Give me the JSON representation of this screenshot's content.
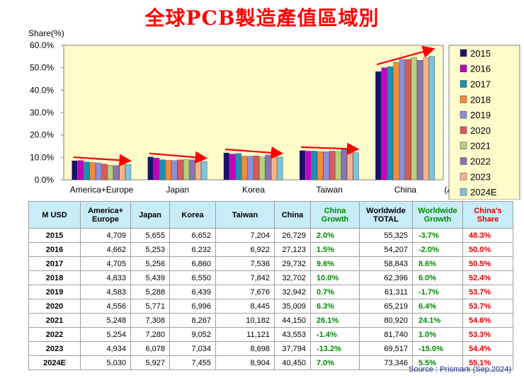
{
  "title": "全球PCB製造產值區域別",
  "chart_data": {
    "type": "bar",
    "y_axis_title": "Share(%)",
    "x_axis_title": "(Area)",
    "ylim": [
      0,
      60
    ],
    "yticks": [
      "0.0%",
      "10.0%",
      "20.0%",
      "30.0%",
      "40.0%",
      "50.0%",
      "60.0%"
    ],
    "categories": [
      "America+Europe",
      "Japan",
      "Korea",
      "Taiwan",
      "China"
    ],
    "legend_position": "right",
    "grid": false,
    "series": [
      {
        "name": "2015",
        "color": "#1c0f6e",
        "values": [
          8.5,
          10.2,
          12.0,
          13.0,
          48.3
        ]
      },
      {
        "name": "2016",
        "color": "#c000c0",
        "values": [
          8.6,
          9.7,
          11.5,
          12.8,
          50.0
        ]
      },
      {
        "name": "2017",
        "color": "#1e8fb0",
        "values": [
          8.0,
          8.9,
          11.7,
          12.8,
          50.5
        ]
      },
      {
        "name": "2018",
        "color": "#f28c38",
        "values": [
          7.7,
          8.7,
          10.5,
          12.6,
          52.4
        ]
      },
      {
        "name": "2019",
        "color": "#8f8fd8",
        "values": [
          7.5,
          8.6,
          10.5,
          12.5,
          53.7
        ]
      },
      {
        "name": "2020",
        "color": "#d85a5a",
        "values": [
          7.0,
          8.9,
          10.7,
          12.8,
          53.7
        ]
      },
      {
        "name": "2021",
        "color": "#b5d17c",
        "values": [
          6.5,
          9.0,
          10.2,
          12.6,
          54.6
        ]
      },
      {
        "name": "2022",
        "color": "#8a75b0",
        "values": [
          6.4,
          8.9,
          11.1,
          13.6,
          53.3
        ]
      },
      {
        "name": "2023",
        "color": "#f6b48b",
        "values": [
          7.1,
          8.7,
          10.1,
          12.5,
          54.4
        ]
      },
      {
        "name": "2024E",
        "color": "#7ec4dc",
        "values": [
          6.9,
          8.1,
          10.2,
          12.1,
          55.1
        ]
      }
    ]
  },
  "table": {
    "headers": [
      "M USD",
      "America+ Europe",
      "Japan",
      "Korea",
      "Taiwan",
      "China",
      "China Growth",
      "Worldwide TOTAL",
      "Worldwide Growth",
      "China's Share"
    ],
    "rows": [
      [
        "2015",
        "4,709",
        "5,655",
        "6,652",
        "7,204",
        "26,729",
        "2.0%",
        "55,325",
        "-3.7%",
        "48.3%"
      ],
      [
        "2016",
        "4,662",
        "5,253",
        "6,232",
        "6,922",
        "27,123",
        "1.5%",
        "54,207",
        "-2.0%",
        "50.0%"
      ],
      [
        "2017",
        "4,705",
        "5,256",
        "6,860",
        "7,536",
        "29,732",
        "9.6%",
        "58,843",
        "8.6%",
        "50.5%"
      ],
      [
        "2018",
        "4,833",
        "5,439",
        "6,550",
        "7,842",
        "32,702",
        "10.0%",
        "62,396",
        "6.0%",
        "52.4%"
      ],
      [
        "2019",
        "4,583",
        "5,288",
        "6,439",
        "7,676",
        "32,942",
        "0.7%",
        "61,311",
        "-1.7%",
        "53.7%"
      ],
      [
        "2020",
        "4,556",
        "5,771",
        "6,996",
        "8,445",
        "35,009",
        "6.3%",
        "65,219",
        "6.4%",
        "53.7%"
      ],
      [
        "2021",
        "5,248",
        "7,308",
        "8,267",
        "10,182",
        "44,150",
        "26.1%",
        "80,920",
        "24.1%",
        "54.6%"
      ],
      [
        "2022",
        "5,254",
        "7,280",
        "9,052",
        "11,121",
        "43,553",
        "-1.4%",
        "81,740",
        "1.0%",
        "53.3%"
      ],
      [
        "2023",
        "4,934",
        "6,078",
        "7,034",
        "8,698",
        "37,794",
        "-13.2%",
        "69,517",
        "-15.0%",
        "54.4%"
      ],
      [
        "2024E",
        "5,030",
        "5,927",
        "7,455",
        "8,904",
        "40,450",
        "7.0%",
        "73,346",
        "5.5%",
        "55.1%"
      ]
    ]
  },
  "source": "Source : Prismark (Sep.2024)",
  "colors": {
    "title": "#ff0000",
    "plot_bg": "#fffccc",
    "header_bg": "#c8ecf8",
    "arrow": "#ff0000"
  }
}
